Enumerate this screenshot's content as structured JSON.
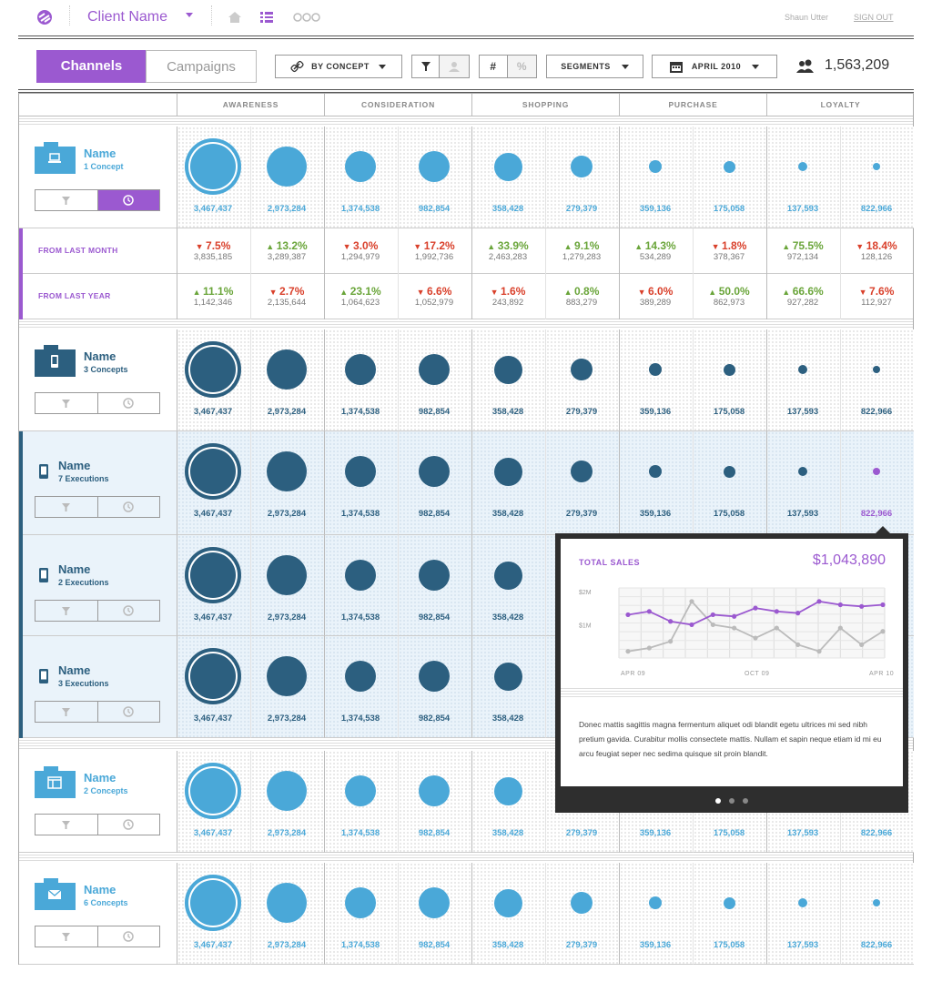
{
  "header": {
    "client_name": "Client Name",
    "user": "Shaun Utter",
    "signout": "SIGN OUT"
  },
  "toolbar": {
    "tab_channels": "Channels",
    "tab_campaigns": "Campaigns",
    "by_concept": "BY CONCEPT",
    "hash": "#",
    "percent": "%",
    "segments": "SEGMENTS",
    "date": "APRIL 2010",
    "total_users": "1,563,209"
  },
  "columns": [
    "AWARENESS",
    "CONSIDERATION",
    "SHOPPING",
    "PURCHASE",
    "LOYALTY"
  ],
  "values": [
    "3,467,437",
    "2,973,284",
    "1,374,538",
    "982,854",
    "358,428",
    "279,379",
    "359,136",
    "175,058",
    "137,593",
    "822,966"
  ],
  "rows": [
    {
      "name": "Name",
      "sub": "1 Concept"
    },
    {
      "name": "Name",
      "sub": "3 Concepts"
    },
    {
      "name": "Name",
      "sub": "7 Executions"
    },
    {
      "name": "Name",
      "sub": "2 Executions"
    },
    {
      "name": "Name",
      "sub": "3 Executions"
    },
    {
      "name": "Name",
      "sub": "2 Concepts"
    },
    {
      "name": "Name",
      "sub": "6 Concepts"
    }
  ],
  "compare": {
    "month_label": "FROM LAST MONTH",
    "year_label": "FROM LAST YEAR",
    "month": [
      [
        "7.5%",
        "3,835,185",
        "dn"
      ],
      [
        "13.2%",
        "3,289,387",
        "up"
      ],
      [
        "3.0%",
        "1,294,979",
        "dn"
      ],
      [
        "17.2%",
        "1,992,736",
        "dn"
      ],
      [
        "33.9%",
        "2,463,283",
        "up"
      ],
      [
        "9.1%",
        "1,279,283",
        "up"
      ],
      [
        "14.3%",
        "534,289",
        "up"
      ],
      [
        "1.8%",
        "378,367",
        "dn"
      ],
      [
        "75.5%",
        "972,134",
        "up"
      ],
      [
        "18.4%",
        "128,126",
        "dn"
      ]
    ],
    "year": [
      [
        "11.1%",
        "1,142,346",
        "up"
      ],
      [
        "2.7%",
        "2,135,644",
        "dn"
      ],
      [
        "23.1%",
        "1,064,623",
        "up"
      ],
      [
        "6.6%",
        "1,052,979",
        "dn"
      ],
      [
        "1.6%",
        "243,892",
        "dn"
      ],
      [
        "0.8%",
        "883,279",
        "up"
      ],
      [
        "6.0%",
        "389,289",
        "dn"
      ],
      [
        "50.0%",
        "862,973",
        "up"
      ],
      [
        "66.6%",
        "927,282",
        "up"
      ],
      [
        "7.6%",
        "112,927",
        "dn"
      ]
    ]
  },
  "popup": {
    "title": "TOTAL SALES",
    "amount": "$1,043,890",
    "text": "Donec mattis sagittis magna fermentum aliquet odi blandit egetu ultrices mi sed nibh pretium gavida. Curabitur mollis consectete mattis. Nullam et sapin neque etiam id mi eu arcu feugiat seper nec sedima quisque sit proin blandit."
  },
  "chart_data": {
    "type": "line",
    "x_labels": [
      "APR 09",
      "OCT 09",
      "APR 10"
    ],
    "y_labels": [
      "$2M",
      "$1M"
    ],
    "ylim": [
      0,
      2
    ],
    "series": [
      {
        "color": "#9b59d0",
        "values": [
          1.3,
          1.4,
          1.1,
          1.0,
          1.3,
          1.25,
          1.5,
          1.4,
          1.35,
          1.7,
          1.6,
          1.55,
          1.6
        ]
      },
      {
        "color": "#bbbbbb",
        "values": [
          0.2,
          0.3,
          0.5,
          1.7,
          1.0,
          0.9,
          0.6,
          0.9,
          0.4,
          0.2,
          0.9,
          0.4,
          0.8
        ]
      }
    ]
  },
  "colors": {
    "accent": "#9b59d0",
    "light_blue": "#4aa8d8",
    "dark_blue": "#2c5f7f"
  }
}
